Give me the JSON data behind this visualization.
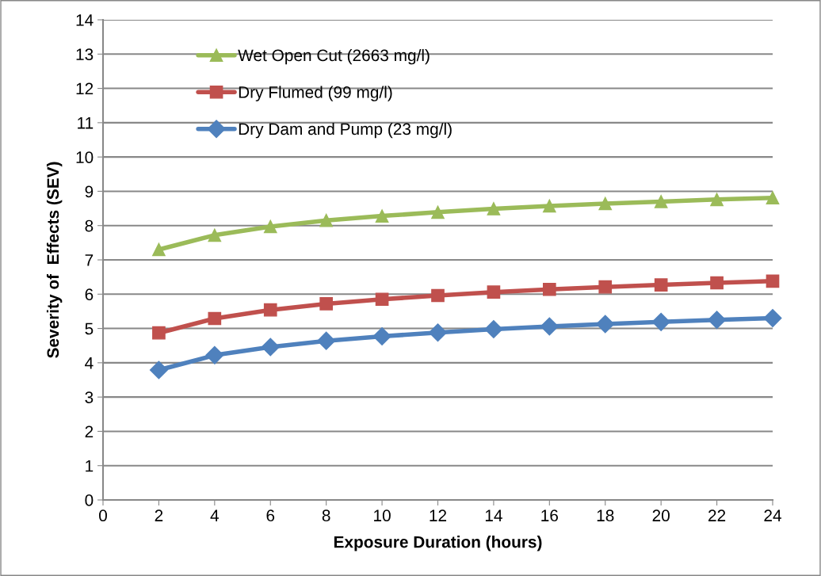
{
  "chart_data": {
    "type": "line",
    "xlabel": "Exposure Duration (hours)",
    "ylabel": "Severity of  Effects (SEV)",
    "x": [
      2,
      4,
      6,
      8,
      10,
      12,
      14,
      16,
      18,
      20,
      22,
      24
    ],
    "series": [
      {
        "name": "Wet Open Cut (2663 mg/l)",
        "color": "#9bbb59",
        "marker": "triangle",
        "values": [
          7.3,
          7.72,
          7.97,
          8.15,
          8.28,
          8.39,
          8.49,
          8.57,
          8.64,
          8.7,
          8.76,
          8.81
        ]
      },
      {
        "name": "Dry Flumed (99 mg/l)",
        "color": "#c0504d",
        "marker": "square",
        "values": [
          4.87,
          5.29,
          5.54,
          5.72,
          5.85,
          5.96,
          6.06,
          6.14,
          6.21,
          6.27,
          6.33,
          6.38
        ]
      },
      {
        "name": "Dry Dam and Pump (23 mg/l)",
        "color": "#4f81bd",
        "marker": "diamond",
        "values": [
          3.79,
          4.22,
          4.46,
          4.64,
          4.77,
          4.88,
          4.98,
          5.06,
          5.13,
          5.19,
          5.25,
          5.3
        ]
      }
    ],
    "xlim": [
      0,
      24
    ],
    "xticks": [
      0,
      2,
      4,
      6,
      8,
      10,
      12,
      14,
      16,
      18,
      20,
      22,
      24
    ],
    "ylim": [
      0,
      14
    ],
    "yticks": [
      0,
      1,
      2,
      3,
      4,
      5,
      6,
      7,
      8,
      9,
      10,
      11,
      12,
      13,
      14
    ],
    "grid": "y",
    "legend": "top left",
    "line_style": "solid"
  }
}
